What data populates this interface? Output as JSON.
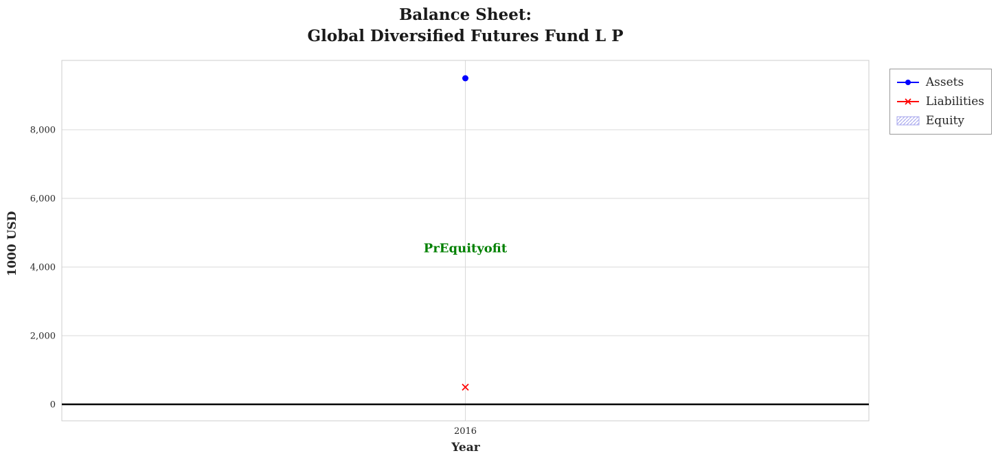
{
  "title": {
    "line1": "Balance Sheet:",
    "line2": "Global Diversified Futures Fund L P"
  },
  "chart_data": {
    "type": "scatter",
    "x": [
      2016
    ],
    "series": [
      {
        "name": "Assets",
        "values": [
          9500
        ],
        "color": "#0000ff",
        "marker": "circle"
      },
      {
        "name": "Liabilities",
        "values": [
          500
        ],
        "color": "#ff0000",
        "marker": "x"
      },
      {
        "name": "Equity",
        "values": [],
        "color": "#aaaaee",
        "marker": "hatched-patch"
      }
    ],
    "annotation": {
      "text": "PrEquityofit",
      "x": 2016,
      "y": 4540,
      "color": "#008000"
    },
    "xlabel": "Year",
    "ylabel": "1000 USD",
    "xticks": [
      "2016"
    ],
    "yticks": [
      0,
      2000,
      4000,
      6000,
      8000
    ],
    "ylim": [
      -480,
      10020
    ],
    "xlim": [
      2015.5,
      2016.5
    ],
    "grid": true,
    "zero_line_color": "#000000",
    "legend_position": "upper right outside"
  }
}
